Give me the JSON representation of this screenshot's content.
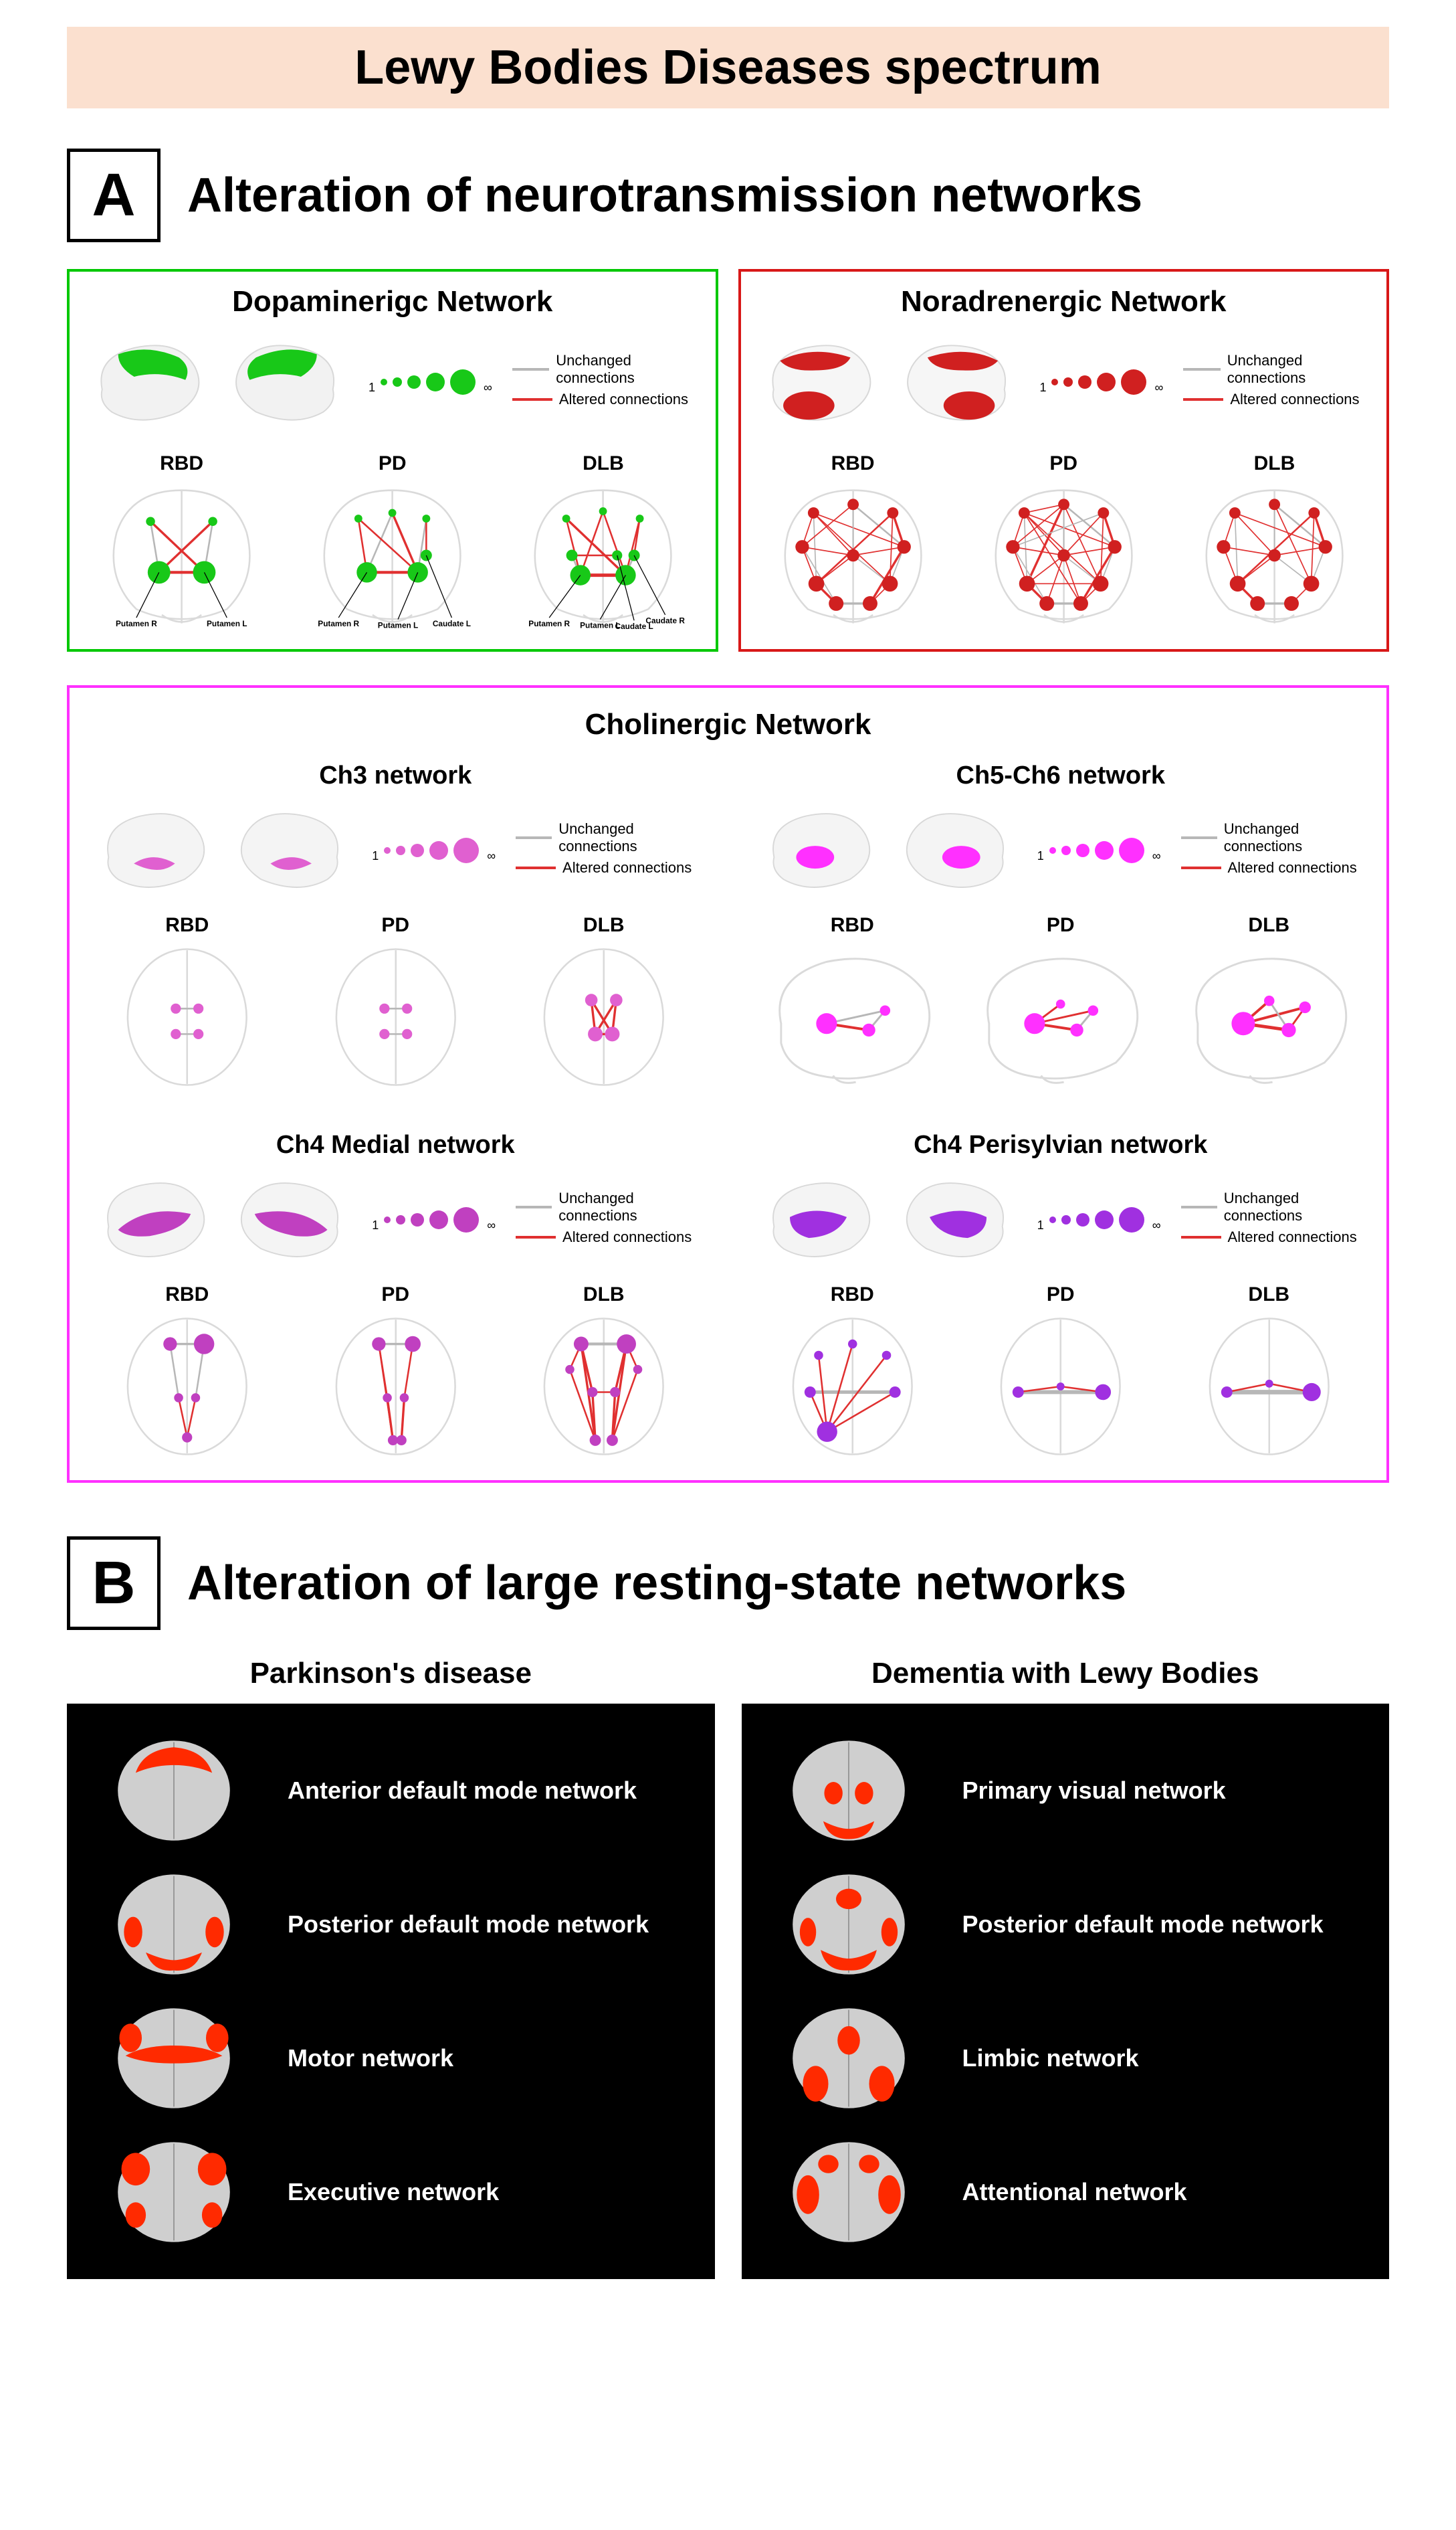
{
  "banner": {
    "text": "Lewy Bodies Diseases spectrum",
    "bg": "#fbe0cf",
    "color": "#000000"
  },
  "sectionA": {
    "letter": "A",
    "title": "Alteration of neurotransmission networks"
  },
  "legend_common": {
    "unchanged": "Unchanged connections",
    "altered": "Altered connections",
    "unchanged_color": "#b7b7b7",
    "altered_color": "#e03030",
    "scale_min": "1",
    "scale_max": "∞"
  },
  "conditions": [
    "RBD",
    "PD",
    "DLB"
  ],
  "dopaminergic": {
    "title": "Dopaminerigc  Network",
    "border": "#00c800",
    "color": "#18c818",
    "node_labels": [
      "Putamen R",
      "Putamen L",
      "Putamen R",
      "Putamen L",
      "Caudate L",
      "Putamen R",
      "Putamen L",
      "Caudate L",
      "Caudate R"
    ]
  },
  "noradrenergic": {
    "title": "Noradrenergic  Network",
    "border": "#d81818",
    "color": "#d02020"
  },
  "cholinergic": {
    "title": "Cholinergic  Network",
    "border": "#ff30ff",
    "subs": {
      "ch3": {
        "title": "Ch3 network",
        "color": "#e060d0"
      },
      "ch56": {
        "title": "Ch5-Ch6 network",
        "color": "#ff30ff"
      },
      "ch4m": {
        "title": "Ch4 Medial network",
        "color": "#c040c0"
      },
      "ch4p": {
        "title": "Ch4 Perisylvian network",
        "color": "#a030e0"
      }
    }
  },
  "sectionB": {
    "letter": "B",
    "title": "Alteration of large resting-state networks",
    "pd": {
      "heading": "Parkinson's disease",
      "networks": [
        "Anterior default mode network",
        "Posterior default mode network",
        "Motor network",
        "Executive network"
      ]
    },
    "dlb": {
      "heading": "Dementia with Lewy Bodies",
      "networks": [
        "Primary visual network",
        "Posterior default mode network",
        "Limbic network",
        "Attentional network"
      ]
    },
    "overlay_color": "#ff2a00",
    "brain_gray": "#cfcfcf"
  }
}
